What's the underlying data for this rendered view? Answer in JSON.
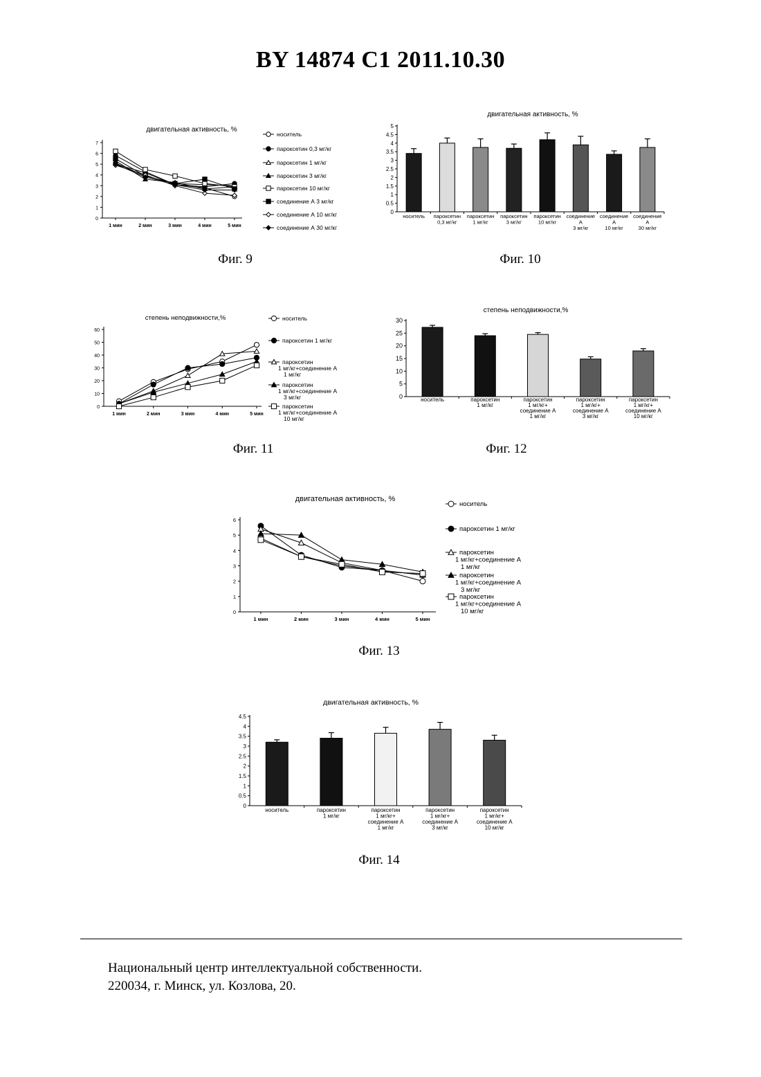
{
  "header": {
    "title": "BY  14874  C1  2011.10.30"
  },
  "footer": {
    "line1": "Национальный центр интеллектуальной собственности.",
    "line2": "220034, г. Минск, ул. Козлова, 20."
  },
  "chart_data": [
    {
      "id": "fig9",
      "caption": "Фиг. 9",
      "type": "line",
      "title": "двигательная активность, %",
      "x": [
        "1 мин",
        "2 мин",
        "3 мин",
        "4 мин",
        "5 мин"
      ],
      "ylim": [
        0,
        7
      ],
      "yticks": [
        0,
        1,
        2,
        3,
        4,
        5,
        6,
        7
      ],
      "legend": "right",
      "series": [
        {
          "name": "носитель",
          "marker": "circle-open",
          "values": [
            5.0,
            4.2,
            3.1,
            2.8,
            2.0
          ]
        },
        {
          "name": "пароксетин 0,3 мг/кг",
          "marker": "circle-filled",
          "values": [
            5.8,
            4.3,
            3.1,
            2.9,
            3.2
          ]
        },
        {
          "name": "пароксетин 1 мг/кг",
          "marker": "triangle-open",
          "values": [
            5.1,
            3.9,
            3.2,
            3.1,
            3.0
          ]
        },
        {
          "name": "пароксетин 3 мг/кг",
          "marker": "triangle-filled",
          "values": [
            5.3,
            3.6,
            3.3,
            2.7,
            2.9
          ]
        },
        {
          "name": "пароксетин 10 мг/кг",
          "marker": "square-open",
          "values": [
            6.2,
            4.5,
            3.9,
            3.2,
            2.9
          ]
        },
        {
          "name": "соединение А 3 мг/кг",
          "marker": "square-filled",
          "values": [
            5.5,
            3.9,
            3.2,
            3.6,
            2.7
          ]
        },
        {
          "name": "соединение А 10 мг/кг",
          "marker": "diamond-open",
          "values": [
            4.9,
            4.0,
            3.0,
            2.3,
            2.1
          ]
        },
        {
          "name": "соединение А 30 мг/кг",
          "marker": "diamond-filled",
          "values": [
            5.0,
            3.8,
            3.1,
            2.6,
            2.6
          ]
        }
      ]
    },
    {
      "id": "fig10",
      "caption": "Фиг. 10",
      "type": "bar",
      "title": "двигательная активность, %",
      "ylim": [
        0,
        5
      ],
      "yticks": [
        0,
        0.5,
        1,
        1.5,
        2,
        2.5,
        3,
        3.5,
        4,
        4.5,
        5
      ],
      "categories": [
        [
          "носитель"
        ],
        [
          "пароксетин",
          "0,3 мг/кг"
        ],
        [
          "пароксетин",
          "1 мг/кг"
        ],
        [
          "пароксетин",
          "3 мг/кг"
        ],
        [
          "пароксетин",
          "10 мг/кг"
        ],
        [
          "соединение",
          "А",
          "3 мг/кг"
        ],
        [
          "соединение",
          "А",
          "10 мг/кг"
        ],
        [
          "соединение",
          "А",
          "30 мг/кг"
        ]
      ],
      "values": [
        3.4,
        4.0,
        3.75,
        3.7,
        4.2,
        3.9,
        3.35,
        3.75
      ],
      "errors": [
        0.28,
        0.3,
        0.5,
        0.25,
        0.4,
        0.5,
        0.2,
        0.5
      ],
      "colors": [
        "#1a1a1a",
        "#dcdcdc",
        "#8a8a8a",
        "#222222",
        "#111111",
        "#555555",
        "#1a1a1a",
        "#8a8a8a"
      ]
    },
    {
      "id": "fig11",
      "caption": "Фиг. 11",
      "type": "line",
      "title": "степень неподвижности,%",
      "x": [
        "1 мин",
        "2 мин",
        "3 мин",
        "4 мин",
        "5 мин"
      ],
      "ylim": [
        0,
        60
      ],
      "yticks": [
        0,
        10,
        20,
        30,
        40,
        50,
        60
      ],
      "legend": "right",
      "series": [
        {
          "name": [
            "носитель"
          ],
          "marker": "circle-open",
          "values": [
            4,
            19,
            29,
            35,
            48
          ]
        },
        {
          "name": [
            "пароксетин 1 мг/кг"
          ],
          "marker": "circle-filled",
          "values": [
            2,
            17,
            30,
            33,
            38
          ]
        },
        {
          "name": [
            "пароксетин",
            "1 мг/кг+соединение А",
            "1 мг/кг"
          ],
          "marker": "triangle-open",
          "values": [
            2,
            12,
            24,
            41,
            43
          ]
        },
        {
          "name": [
            "пароксетин",
            "1 мг/кг+соединение А",
            "3 мг/кг"
          ],
          "marker": "triangle-filled",
          "values": [
            2,
            11,
            18,
            25,
            35
          ]
        },
        {
          "name": [
            "пароксетин",
            "1 мг/кг+соединение А",
            "10 мг/кг"
          ],
          "marker": "square-open",
          "values": [
            0,
            7,
            15,
            20,
            32
          ]
        }
      ]
    },
    {
      "id": "fig12",
      "caption": "Фиг. 12",
      "type": "bar",
      "title": "степень неподвижности,%",
      "ylim": [
        0,
        30
      ],
      "yticks": [
        0,
        5,
        10,
        15,
        20,
        25,
        30
      ],
      "categories": [
        [
          "носитель"
        ],
        [
          "пароксетин",
          "1 мг/кг"
        ],
        [
          "пароксетин",
          "1 мг/кг+",
          "соединение А",
          "1 мг/кг"
        ],
        [
          "пароксетин",
          "1 мг/кг+",
          "соединение А",
          "3 мг/кг"
        ],
        [
          "пароксетин",
          "1 мг/кг+",
          "соединение А",
          "10 мг/кг"
        ]
      ],
      "values": [
        27.3,
        24.0,
        24.5,
        14.8,
        18.0
      ],
      "errors": [
        0.8,
        0.8,
        0.7,
        0.9,
        0.9
      ],
      "colors": [
        "#1a1a1a",
        "#111111",
        "#d6d6d6",
        "#5a5a5a",
        "#6a6a6a"
      ]
    },
    {
      "id": "fig13",
      "caption": "Фиг. 13",
      "type": "line",
      "title": "двигательная активность, %",
      "x": [
        "1 мин",
        "2 мин",
        "3 мин",
        "4 мин",
        "5 мин"
      ],
      "ylim": [
        0,
        6
      ],
      "yticks": [
        0,
        1,
        2,
        3,
        4,
        5,
        6
      ],
      "legend": "right",
      "series": [
        {
          "name": [
            "носитель"
          ],
          "marker": "circle-open",
          "values": [
            4.8,
            3.6,
            3.0,
            2.7,
            2.0
          ]
        },
        {
          "name": [
            "пароксетин 1 мг/кг"
          ],
          "marker": "circle-filled",
          "values": [
            5.6,
            3.7,
            2.9,
            2.7,
            2.4
          ]
        },
        {
          "name": [
            "пароксетин",
            "1 мг/кг+соединение А",
            "1 мг/кг"
          ],
          "marker": "triangle-open",
          "values": [
            5.4,
            4.5,
            3.2,
            2.7,
            2.4
          ]
        },
        {
          "name": [
            "пароксетин",
            "1 мг/кг+соединение А",
            "3 мг/кг"
          ],
          "marker": "triangle-filled",
          "values": [
            5.1,
            5.0,
            3.4,
            3.1,
            2.6
          ]
        },
        {
          "name": [
            "пароксетин",
            "1 мг/кг+соединение А",
            "10 мг/кг"
          ],
          "marker": "square-open",
          "values": [
            4.7,
            3.6,
            3.1,
            2.6,
            2.5
          ]
        }
      ]
    },
    {
      "id": "fig14",
      "caption": "Фиг. 14",
      "type": "bar",
      "title": "двигательная активность, %",
      "ylim": [
        0,
        4.5
      ],
      "yticks": [
        0,
        0.5,
        1,
        1.5,
        2,
        2.5,
        3,
        3.5,
        4,
        4.5
      ],
      "categories": [
        [
          "носитель"
        ],
        [
          "пароксетин",
          "1 мг/кг"
        ],
        [
          "пароксетин",
          "1 мг/кг+",
          "соединение А",
          "1 мг/кг"
        ],
        [
          "пароксетин",
          "1 мг/кг+",
          "соединение А",
          "3 мг/кг"
        ],
        [
          "пароксетин",
          "1 мг/кг+",
          "соединение А",
          "10 мг/кг"
        ]
      ],
      "values": [
        3.2,
        3.4,
        3.65,
        3.85,
        3.3
      ],
      "errors": [
        0.12,
        0.28,
        0.3,
        0.35,
        0.25
      ],
      "colors": [
        "#1a1a1a",
        "#111111",
        "#f2f2f2",
        "#7a7a7a",
        "#4a4a4a"
      ]
    }
  ]
}
